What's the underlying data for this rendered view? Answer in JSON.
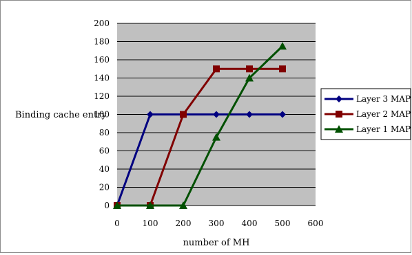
{
  "chart_data": {
    "type": "line",
    "title": "",
    "xlabel": "number of MH",
    "ylabel": "Binding cache entry",
    "x": [
      0,
      100,
      200,
      300,
      400,
      500
    ],
    "xlim": [
      0,
      600
    ],
    "ylim": [
      0,
      200
    ],
    "x_ticks": [
      "0",
      "100",
      "200",
      "300",
      "400",
      "500",
      "600"
    ],
    "y_ticks": [
      "0",
      "20",
      "40",
      "60",
      "80",
      "100",
      "120",
      "140",
      "160",
      "180",
      "200"
    ],
    "grid": true,
    "legend_position": "right",
    "plot_background": "#c0c0c0",
    "series": [
      {
        "name": "Layer 3 MAP",
        "values": [
          0,
          100,
          100,
          100,
          100,
          100
        ],
        "color": "#000080",
        "marker": "diamond"
      },
      {
        "name": "Layer 2 MAP",
        "values": [
          0,
          0,
          100,
          150,
          150,
          150
        ],
        "color": "#800000",
        "marker": "square"
      },
      {
        "name": "Layer 1 MAP",
        "values": [
          0,
          0,
          0,
          75,
          140,
          175
        ],
        "color": "#005000",
        "marker": "triangle"
      }
    ]
  }
}
